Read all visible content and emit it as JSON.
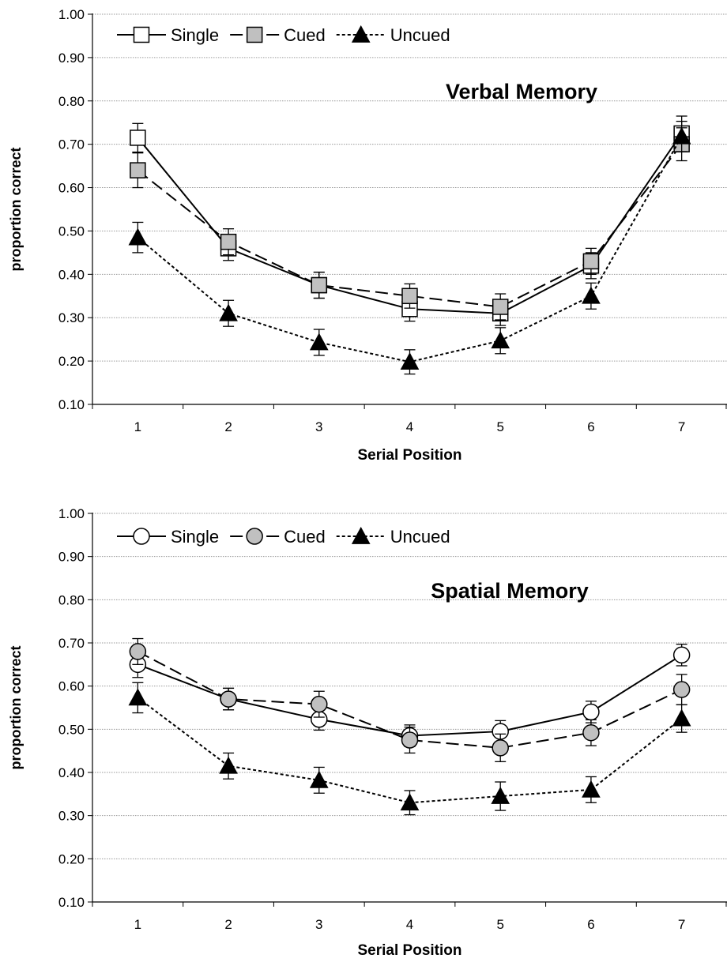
{
  "chart_data": [
    {
      "type": "line",
      "title": "Verbal Memory",
      "xlabel": "Serial Position",
      "ylabel": "proportion correct",
      "categories": [
        "1",
        "2",
        "3",
        "4",
        "5",
        "6",
        "7"
      ],
      "y_ticks": [
        "0.10",
        "0.20",
        "0.30",
        "0.40",
        "0.50",
        "0.60",
        "0.70",
        "0.80",
        "0.90",
        "1.00"
      ],
      "ylim": [
        0.1,
        1.0
      ],
      "grid": true,
      "legend_position": "top-left",
      "marker_shape": "square",
      "series": [
        {
          "name": "Single",
          "marker": "open",
          "line": "solid",
          "values": [
            0.715,
            0.46,
            0.375,
            0.32,
            0.31,
            0.42,
            0.725
          ],
          "errors": [
            0.033,
            0.028,
            0.03,
            0.028,
            0.028,
            0.03,
            0.04
          ]
        },
        {
          "name": "Cued",
          "marker": "gray",
          "line": "dashed",
          "values": [
            0.64,
            0.475,
            0.375,
            0.35,
            0.325,
            0.43,
            0.7
          ],
          "errors": [
            0.04,
            0.03,
            0.03,
            0.028,
            0.03,
            0.03,
            0.038
          ]
        },
        {
          "name": "Uncued",
          "marker": "filled-triangle",
          "line": "dotted",
          "values": [
            0.485,
            0.31,
            0.243,
            0.198,
            0.247,
            0.35,
            0.718
          ],
          "errors": [
            0.035,
            0.03,
            0.03,
            0.028,
            0.03,
            0.03,
            0.035
          ]
        }
      ]
    },
    {
      "type": "line",
      "title": "Spatial Memory",
      "xlabel": "Serial Position",
      "ylabel": "proportion correct",
      "categories": [
        "1",
        "2",
        "3",
        "4",
        "5",
        "6",
        "7"
      ],
      "y_ticks": [
        "0.10",
        "0.20",
        "0.30",
        "0.40",
        "0.50",
        "0.60",
        "0.70",
        "0.80",
        "0.90",
        "1.00"
      ],
      "ylim": [
        0.1,
        1.0
      ],
      "grid": true,
      "legend_position": "top-left",
      "marker_shape": "circle",
      "series": [
        {
          "name": "Single",
          "marker": "open",
          "line": "solid",
          "values": [
            0.65,
            0.57,
            0.523,
            0.485,
            0.495,
            0.54,
            0.672
          ],
          "errors": [
            0.03,
            0.025,
            0.025,
            0.025,
            0.025,
            0.025,
            0.025
          ]
        },
        {
          "name": "Cued",
          "marker": "gray",
          "line": "dashed",
          "values": [
            0.68,
            0.57,
            0.558,
            0.475,
            0.457,
            0.492,
            0.592
          ],
          "errors": [
            0.03,
            0.025,
            0.03,
            0.03,
            0.032,
            0.03,
            0.035
          ]
        },
        {
          "name": "Uncued",
          "marker": "filled-triangle",
          "line": "dotted",
          "values": [
            0.573,
            0.415,
            0.382,
            0.33,
            0.345,
            0.36,
            0.525
          ],
          "errors": [
            0.035,
            0.03,
            0.03,
            0.028,
            0.033,
            0.03,
            0.032
          ]
        }
      ]
    }
  ]
}
